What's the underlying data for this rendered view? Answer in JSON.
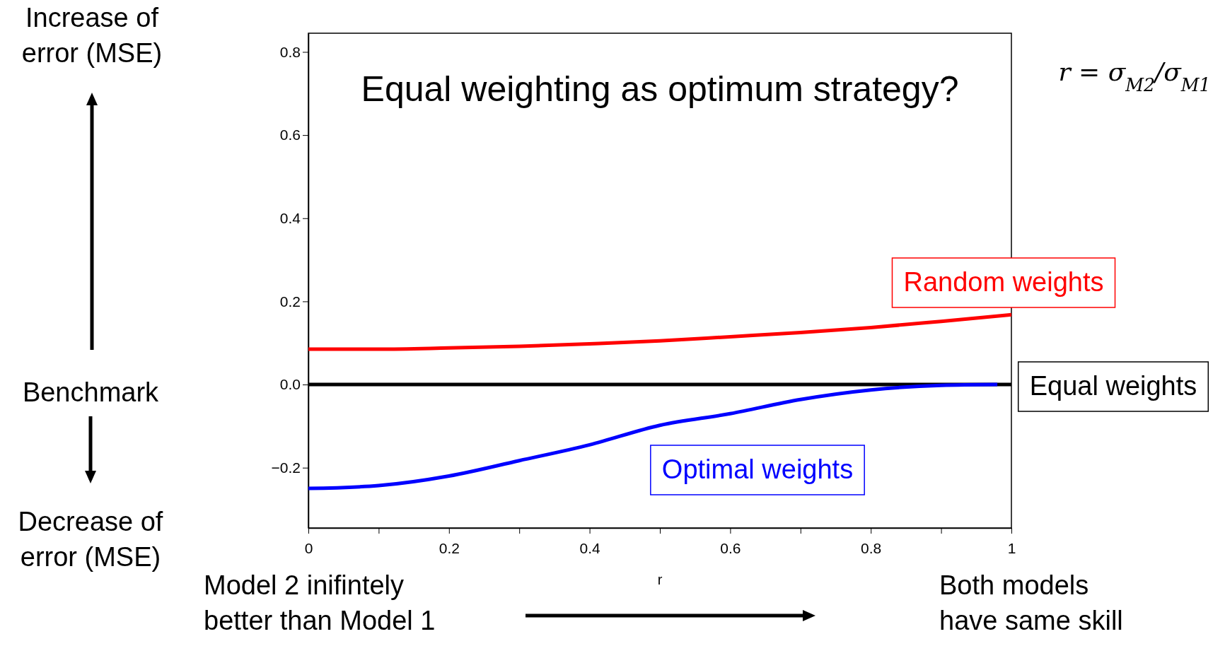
{
  "chart_data": {
    "type": "line",
    "title": "Equal weighting as optimum strategy?",
    "xlabel": "r",
    "xlim": [
      0,
      1
    ],
    "ylim": [
      -0.345,
      0.845
    ],
    "xticks": [
      0,
      {
        "value": 0.1,
        "label": null
      },
      0.2,
      {
        "value": 0.3,
        "label": null
      },
      0.4,
      {
        "value": 0.5,
        "label": null
      },
      0.6,
      {
        "value": 0.7,
        "label": null
      },
      0.8,
      {
        "value": 0.9,
        "label": null
      },
      1
    ],
    "yticks": [
      {
        "value": -0.2,
        "label": "−0.2"
      },
      {
        "value": 0,
        "label": "0.0"
      },
      0.2,
      0.4,
      0.6,
      0.8
    ],
    "grid": false,
    "marker": "none",
    "line_style": "solid",
    "series": [
      {
        "name": "Random weights",
        "color": "#ff0000",
        "x": [
          0,
          0.1,
          0.2,
          0.3,
          0.4,
          0.5,
          0.6,
          0.7,
          0.8,
          0.9,
          1
        ],
        "values": [
          0.085,
          0.085,
          0.088,
          0.092,
          0.098,
          0.105,
          0.115,
          0.125,
          0.137,
          0.152,
          0.168
        ]
      },
      {
        "name": "Equal weights",
        "color": "#000000",
        "x": [
          0,
          1
        ],
        "values": [
          0,
          0
        ]
      },
      {
        "name": "Optimal weights",
        "color": "#0000ff",
        "x": [
          0,
          0.1,
          0.2,
          0.3,
          0.4,
          0.5,
          0.6,
          0.7,
          0.8,
          0.9,
          0.98
        ],
        "values": [
          -0.25,
          -0.243,
          -0.22,
          -0.183,
          -0.145,
          -0.098,
          -0.07,
          -0.036,
          -0.013,
          -0.002,
          0
        ]
      }
    ],
    "annotations": [
      "Increase of\nerror (MSE)",
      "Benchmark",
      "Decrease of\nerror (MSE)",
      "Model 2 inifintely\nbetter than Model 1",
      "Both models\nhave same skill",
      "r = σ$_{M2}$/σ$_{M1}$"
    ]
  }
}
